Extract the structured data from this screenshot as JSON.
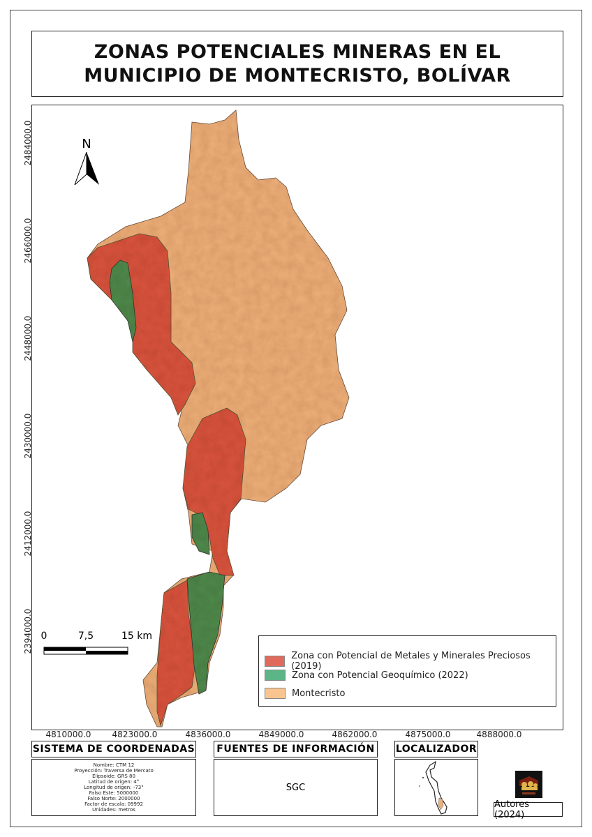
{
  "title": "ZONAS POTENCIALES MINERAS EN EL MUNICIPIO DE MONTECRISTO, BOLÍVAR",
  "north_arrow": {
    "label": "N",
    "icon": "north-arrow-icon"
  },
  "scale_bar": {
    "labels": [
      "0",
      "7,5",
      "15 km"
    ]
  },
  "axes": {
    "y_ticks": [
      "2484000.0",
      "2466000.0",
      "2448000.0",
      "2430000.0",
      "2412000.0",
      "2394000.0"
    ],
    "x_ticks": [
      "4810000.0",
      "4823000.0",
      "4836000.0",
      "4849000.0",
      "4862000.0",
      "4875000.0",
      "4888000.0"
    ]
  },
  "legend": {
    "items": [
      {
        "label": "Zona con Potencial de Metales y Minerales Preciosos (2019)",
        "color": "#e06b5d"
      },
      {
        "label": "Zona con Potencial Geoquímico (2022)",
        "color": "#5bb586"
      },
      {
        "label": "Montecristo",
        "color": "#f9c48f"
      }
    ]
  },
  "map_colors": {
    "montecristo": "#eeb07a",
    "metales": "#d9543e",
    "geoquimico": "#4f8a4c"
  },
  "coordinate_system": {
    "header": "SISTEMA DE COORDENADAS",
    "lines": [
      "Nombre: CTM 12",
      "Proyección: Traversa de Mercato",
      "Elipsoide: GRS 80",
      "Latitud de origen: 4°",
      "Longitud de origen: -73°",
      "Falso Este: 5000000",
      "Falso Norte: 2000000",
      "Factor de escala: 09992",
      "Unidades: metros"
    ]
  },
  "sources": {
    "header": "FUENTES DE INFORMACIÓN",
    "text": "SGC"
  },
  "locator": {
    "header": "LOCALIZADOR"
  },
  "logo": {
    "text": "cedins"
  },
  "credits": "Autores (2024)"
}
